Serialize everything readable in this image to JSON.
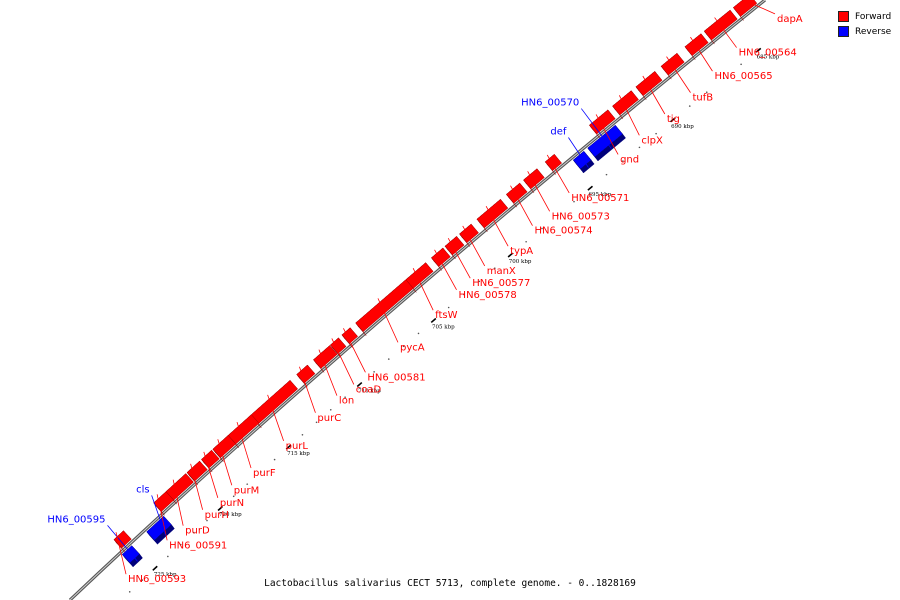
{
  "colors": {
    "forward": "#ff0000",
    "reverse": "#0000ff",
    "backbone": "#888888"
  },
  "legend": {
    "items": [
      {
        "label": "Forward",
        "color": "#ff0000"
      },
      {
        "label": "Reverse",
        "color": "#0000ff"
      }
    ]
  },
  "caption": "Lactobacillus salivarius CECT 5713, complete genome. - 0..1828169",
  "scale": {
    "unit": "kbp",
    "labels": [
      "685 kbp",
      "690 kbp",
      "695 kbp",
      "700 kbp",
      "705 kbp",
      "710 kbp",
      "715 kbp",
      "720 kbp",
      "725 kbp",
      "730 kbp"
    ]
  },
  "genes": [
    {
      "label": "dapA",
      "strand": "forward"
    },
    {
      "label": "HN6_00564",
      "strand": "forward"
    },
    {
      "label": "HN6_00565",
      "strand": "forward"
    },
    {
      "label": "tufB",
      "strand": "forward"
    },
    {
      "label": "tig",
      "strand": "forward"
    },
    {
      "label": "clpX",
      "strand": "forward"
    },
    {
      "label": "gnd",
      "strand": "forward"
    },
    {
      "label": "HN6_00570",
      "strand": "reverse"
    },
    {
      "label": "def",
      "strand": "reverse"
    },
    {
      "label": "HN6_00571",
      "strand": "forward"
    },
    {
      "label": "HN6_00573",
      "strand": "forward"
    },
    {
      "label": "HN6_00574",
      "strand": "forward"
    },
    {
      "label": "typA",
      "strand": "forward"
    },
    {
      "label": "manX",
      "strand": "forward"
    },
    {
      "label": "HN6_00577",
      "strand": "forward"
    },
    {
      "label": "HN6_00578",
      "strand": "forward"
    },
    {
      "label": "ftsW",
      "strand": "forward"
    },
    {
      "label": "pycA",
      "strand": "forward"
    },
    {
      "label": "HN6_00581",
      "strand": "forward"
    },
    {
      "label": "coaD",
      "strand": "forward"
    },
    {
      "label": "lon",
      "strand": "forward"
    },
    {
      "label": "purC",
      "strand": "forward"
    },
    {
      "label": "purL",
      "strand": "forward"
    },
    {
      "label": "purF",
      "strand": "forward"
    },
    {
      "label": "purM",
      "strand": "forward"
    },
    {
      "label": "purN",
      "strand": "forward"
    },
    {
      "label": "purH",
      "strand": "forward"
    },
    {
      "label": "purD",
      "strand": "forward"
    },
    {
      "label": "HN6_00591",
      "strand": "forward"
    },
    {
      "label": "cls",
      "strand": "reverse"
    },
    {
      "label": "HN6_00595",
      "strand": "reverse"
    },
    {
      "label": "HN6_00593",
      "strand": "forward"
    }
  ]
}
